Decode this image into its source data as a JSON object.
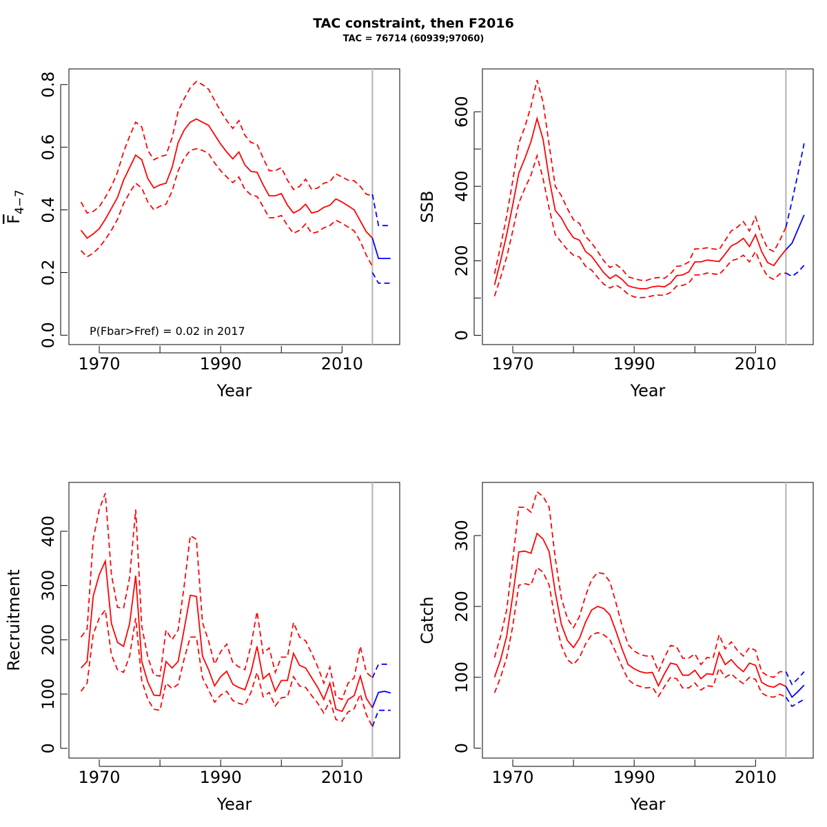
{
  "page": {
    "title": "TAC constraint, then F2016",
    "subtitle": "TAC = 76714 (60939;97060)"
  },
  "colors": {
    "estimate": "#ff0000",
    "forecast": "#0000ff",
    "divider": "#c0c0c0"
  },
  "chart_data": [
    {
      "id": "fbar",
      "type": "line",
      "xlabel": "Year",
      "ylabel": "F̄4−7",
      "ylabel_main": "F",
      "ylabel_sub": "4−7",
      "xlim": [
        1965,
        2019.5
      ],
      "ylim": [
        -0.03,
        0.85
      ],
      "xticks": [
        1970,
        1980,
        1990,
        2000,
        2010
      ],
      "xtick_labels": [
        "1970",
        "1990",
        "2010"
      ],
      "yticks": [
        0.0,
        0.2,
        0.4,
        0.6,
        0.8
      ],
      "ytick_labels": [
        "0.0",
        "0.2",
        "0.4",
        "0.6",
        "0.8"
      ],
      "divider_x": 2015,
      "annotation": "P(Fbar>Fref) = 0.02  in 2017",
      "series": [
        {
          "role": "estimate",
          "x": [
            1967,
            1968,
            1969,
            1970,
            1971,
            1972,
            1973,
            1974,
            1975,
            1976,
            1977,
            1978,
            1979,
            1980,
            1981,
            1982,
            1983,
            1984,
            1985,
            1986,
            1987,
            1988,
            1989,
            1990,
            1991,
            1992,
            1993,
            1994,
            1995,
            1996,
            1997,
            1998,
            1999,
            2000,
            2001,
            2002,
            2003,
            2004,
            2005,
            2006,
            2007,
            2008,
            2009,
            2010,
            2011,
            2012,
            2013,
            2014,
            2015
          ],
          "mid": [
            0.335,
            0.31,
            0.323,
            0.34,
            0.37,
            0.405,
            0.44,
            0.495,
            0.535,
            0.575,
            0.56,
            0.5,
            0.47,
            0.48,
            0.485,
            0.535,
            0.615,
            0.655,
            0.68,
            0.69,
            0.68,
            0.67,
            0.64,
            0.61,
            0.585,
            0.563,
            0.585,
            0.543,
            0.523,
            0.52,
            0.48,
            0.445,
            0.445,
            0.452,
            0.415,
            0.39,
            0.4,
            0.418,
            0.39,
            0.395,
            0.408,
            0.415,
            0.435,
            0.425,
            0.413,
            0.4,
            0.365,
            0.33,
            0.31
          ],
          "lo": [
            0.27,
            0.25,
            0.262,
            0.28,
            0.305,
            0.335,
            0.37,
            0.42,
            0.455,
            0.485,
            0.47,
            0.425,
            0.4,
            0.412,
            0.418,
            0.46,
            0.525,
            0.565,
            0.59,
            0.595,
            0.59,
            0.58,
            0.55,
            0.525,
            0.505,
            0.487,
            0.505,
            0.465,
            0.448,
            0.443,
            0.41,
            0.375,
            0.375,
            0.382,
            0.35,
            0.325,
            0.335,
            0.355,
            0.325,
            0.33,
            0.343,
            0.35,
            0.367,
            0.357,
            0.345,
            0.333,
            0.3,
            0.255,
            0.22
          ],
          "hi": [
            0.425,
            0.39,
            0.395,
            0.41,
            0.44,
            0.475,
            0.52,
            0.585,
            0.635,
            0.68,
            0.665,
            0.59,
            0.56,
            0.57,
            0.575,
            0.63,
            0.715,
            0.755,
            0.79,
            0.81,
            0.8,
            0.785,
            0.75,
            0.715,
            0.685,
            0.66,
            0.685,
            0.638,
            0.615,
            0.61,
            0.565,
            0.525,
            0.525,
            0.535,
            0.495,
            0.465,
            0.475,
            0.498,
            0.465,
            0.47,
            0.485,
            0.49,
            0.515,
            0.505,
            0.495,
            0.493,
            0.475,
            0.45,
            0.445
          ]
        },
        {
          "role": "forecast",
          "x": [
            2015,
            2016,
            2017,
            2018
          ],
          "mid": [
            0.31,
            0.245,
            0.245,
            0.245
          ],
          "lo": [
            0.2,
            0.166,
            0.166,
            0.166
          ],
          "hi": [
            0.45,
            0.35,
            0.35,
            0.35
          ]
        }
      ]
    },
    {
      "id": "ssb",
      "type": "line",
      "xlabel": "Year",
      "ylabel": "SSB",
      "xlim": [
        1965,
        2019.5
      ],
      "ylim": [
        -25,
        715
      ],
      "xticks": [
        1970,
        1980,
        1990,
        2000,
        2010
      ],
      "xtick_labels": [
        "1970",
        "1990",
        "2010"
      ],
      "yticks": [
        0,
        100,
        200,
        300,
        400,
        500,
        600
      ],
      "ytick_labels": [
        "0",
        "200",
        "400",
        "600"
      ],
      "divider_x": 2015,
      "annotation": "",
      "series": [
        {
          "role": "estimate",
          "x": [
            1967,
            1968,
            1969,
            1970,
            1971,
            1972,
            1973,
            1974,
            1975,
            1976,
            1977,
            1978,
            1979,
            1980,
            1981,
            1982,
            1983,
            1984,
            1985,
            1986,
            1987,
            1988,
            1989,
            1990,
            1991,
            1992,
            1993,
            1994,
            1995,
            1996,
            1997,
            1998,
            1999,
            2000,
            2001,
            2002,
            2003,
            2004,
            2005,
            2006,
            2007,
            2008,
            2009,
            2010,
            2011,
            2012,
            2013,
            2014,
            2015
          ],
          "mid": [
            135,
            200,
            270,
            350,
            435,
            475,
            520,
            582,
            525,
            420,
            335,
            315,
            285,
            262,
            255,
            225,
            212,
            190,
            168,
            152,
            162,
            150,
            133,
            128,
            125,
            125,
            130,
            132,
            130,
            140,
            160,
            162,
            170,
            197,
            197,
            202,
            200,
            198,
            218,
            240,
            248,
            260,
            238,
            270,
            225,
            195,
            187,
            210,
            230
          ],
          "lo": [
            105,
            155,
            210,
            280,
            355,
            395,
            430,
            482,
            420,
            340,
            270,
            250,
            230,
            215,
            210,
            185,
            175,
            155,
            137,
            127,
            135,
            125,
            110,
            103,
            101,
            102,
            106,
            108,
            107,
            115,
            132,
            134,
            140,
            162,
            162,
            167,
            165,
            163,
            180,
            200,
            205,
            215,
            197,
            225,
            185,
            158,
            150,
            165,
            167
          ],
          "hi": [
            165,
            240,
            320,
            415,
            515,
            560,
            615,
            685,
            625,
            510,
            400,
            375,
            340,
            310,
            300,
            265,
            248,
            225,
            200,
            182,
            190,
            178,
            157,
            152,
            148,
            147,
            153,
            155,
            153,
            165,
            185,
            187,
            197,
            232,
            232,
            235,
            232,
            230,
            255,
            280,
            290,
            305,
            280,
            318,
            268,
            233,
            225,
            255,
            290
          ]
        },
        {
          "role": "forecast",
          "x": [
            2015,
            2016,
            2017,
            2018
          ],
          "mid": [
            230,
            247,
            285,
            323
          ],
          "lo": [
            167,
            158,
            170,
            188
          ],
          "hi": [
            290,
            360,
            435,
            515
          ]
        }
      ]
    },
    {
      "id": "recruitment",
      "type": "line",
      "xlabel": "Year",
      "ylabel": "Recruitment",
      "xlim": [
        1965,
        2019.5
      ],
      "ylim": [
        -18,
        490
      ],
      "xticks": [
        1970,
        1980,
        1990,
        2000,
        2010
      ],
      "xtick_labels": [
        "1970",
        "1990",
        "2010"
      ],
      "yticks": [
        0,
        100,
        200,
        300,
        400
      ],
      "ytick_labels": [
        "0",
        "100",
        "200",
        "300",
        "400"
      ],
      "divider_x": 2015,
      "annotation": "",
      "series": [
        {
          "role": "estimate",
          "x": [
            1967,
            1968,
            1969,
            1970,
            1971,
            1972,
            1973,
            1974,
            1975,
            1976,
            1977,
            1978,
            1979,
            1980,
            1981,
            1982,
            1983,
            1984,
            1985,
            1986,
            1987,
            1988,
            1989,
            1990,
            1991,
            1992,
            1993,
            1994,
            1995,
            1996,
            1997,
            1998,
            1999,
            2000,
            2001,
            2002,
            2003,
            2004,
            2005,
            2006,
            2007,
            2008,
            2009,
            2010,
            2011,
            2012,
            2013,
            2014,
            2015
          ],
          "mid": [
            148,
            160,
            280,
            320,
            345,
            230,
            195,
            188,
            230,
            318,
            160,
            122,
            98,
            97,
            160,
            148,
            160,
            220,
            282,
            280,
            170,
            145,
            115,
            132,
            142,
            118,
            112,
            108,
            140,
            188,
            128,
            138,
            105,
            125,
            125,
            175,
            153,
            148,
            130,
            112,
            90,
            120,
            72,
            68,
            90,
            97,
            133,
            92,
            75
          ],
          "lo": [
            105,
            120,
            210,
            240,
            255,
            172,
            145,
            140,
            170,
            240,
            125,
            90,
            72,
            70,
            120,
            110,
            118,
            165,
            205,
            205,
            130,
            108,
            85,
            98,
            105,
            88,
            83,
            80,
            103,
            140,
            95,
            103,
            78,
            93,
            95,
            132,
            115,
            112,
            97,
            83,
            65,
            88,
            53,
            50,
            67,
            73,
            100,
            62,
            40
          ],
          "hi": [
            205,
            220,
            385,
            440,
            470,
            320,
            260,
            258,
            315,
            440,
            225,
            168,
            135,
            133,
            218,
            200,
            218,
            300,
            392,
            385,
            232,
            198,
            155,
            178,
            192,
            158,
            150,
            145,
            190,
            252,
            175,
            185,
            140,
            168,
            168,
            232,
            205,
            198,
            175,
            150,
            120,
            150,
            95,
            90,
            120,
            130,
            188,
            140,
            130
          ]
        },
        {
          "role": "forecast",
          "x": [
            2015,
            2016,
            2017,
            2018
          ],
          "mid": [
            75,
            103,
            105,
            102
          ],
          "lo": [
            40,
            70,
            70,
            70
          ],
          "hi": [
            130,
            155,
            155,
            155
          ]
        }
      ]
    },
    {
      "id": "catch",
      "type": "line",
      "xlabel": "Year",
      "ylabel": "Catch",
      "xlim": [
        1965,
        2019.5
      ],
      "ylim": [
        -14,
        375
      ],
      "xticks": [
        1970,
        1980,
        1990,
        2000,
        2010
      ],
      "xtick_labels": [
        "1970",
        "1990",
        "2010"
      ],
      "yticks": [
        0,
        100,
        200,
        300
      ],
      "ytick_labels": [
        "0",
        "100",
        "200",
        "300"
      ],
      "divider_x": 2015,
      "annotation": "",
      "series": [
        {
          "role": "estimate",
          "x": [
            1967,
            1968,
            1969,
            1970,
            1971,
            1972,
            1973,
            1974,
            1975,
            1976,
            1977,
            1978,
            1979,
            1980,
            1981,
            1982,
            1983,
            1984,
            1985,
            1986,
            1987,
            1988,
            1989,
            1990,
            1991,
            1992,
            1993,
            1994,
            1995,
            1996,
            1997,
            1998,
            1999,
            2000,
            2001,
            2002,
            2003,
            2004,
            2005,
            2006,
            2007,
            2008,
            2009,
            2010,
            2011,
            2012,
            2013,
            2014,
            2015
          ],
          "mid": [
            100,
            125,
            158,
            215,
            277,
            278,
            275,
            303,
            295,
            277,
            220,
            175,
            152,
            142,
            155,
            178,
            195,
            200,
            197,
            188,
            165,
            140,
            118,
            112,
            108,
            106,
            107,
            88,
            105,
            120,
            118,
            103,
            103,
            110,
            98,
            105,
            104,
            135,
            118,
            125,
            115,
            108,
            120,
            117,
            93,
            88,
            86,
            91,
            87
          ],
          "lo": [
            78,
            100,
            128,
            172,
            230,
            232,
            230,
            255,
            248,
            230,
            180,
            145,
            125,
            118,
            128,
            147,
            160,
            163,
            160,
            153,
            135,
            115,
            97,
            90,
            87,
            85,
            86,
            73,
            87,
            100,
            98,
            85,
            85,
            92,
            82,
            88,
            87,
            113,
            100,
            105,
            97,
            91,
            100,
            97,
            78,
            73,
            72,
            76,
            72
          ],
          "hi": [
            128,
            158,
            195,
            265,
            340,
            340,
            333,
            362,
            355,
            340,
            268,
            212,
            183,
            170,
            186,
            215,
            238,
            248,
            246,
            235,
            205,
            173,
            146,
            137,
            132,
            130,
            130,
            108,
            128,
            145,
            143,
            127,
            127,
            133,
            118,
            128,
            127,
            160,
            140,
            150,
            138,
            130,
            142,
            138,
            108,
            102,
            100,
            108,
            108
          ]
        },
        {
          "role": "forecast",
          "x": [
            2015,
            2016,
            2017,
            2018
          ],
          "mid": [
            87,
            72,
            80,
            89
          ],
          "lo": [
            72,
            59,
            64,
            69
          ],
          "hi": [
            108,
            90,
            98,
            108
          ]
        }
      ]
    }
  ]
}
